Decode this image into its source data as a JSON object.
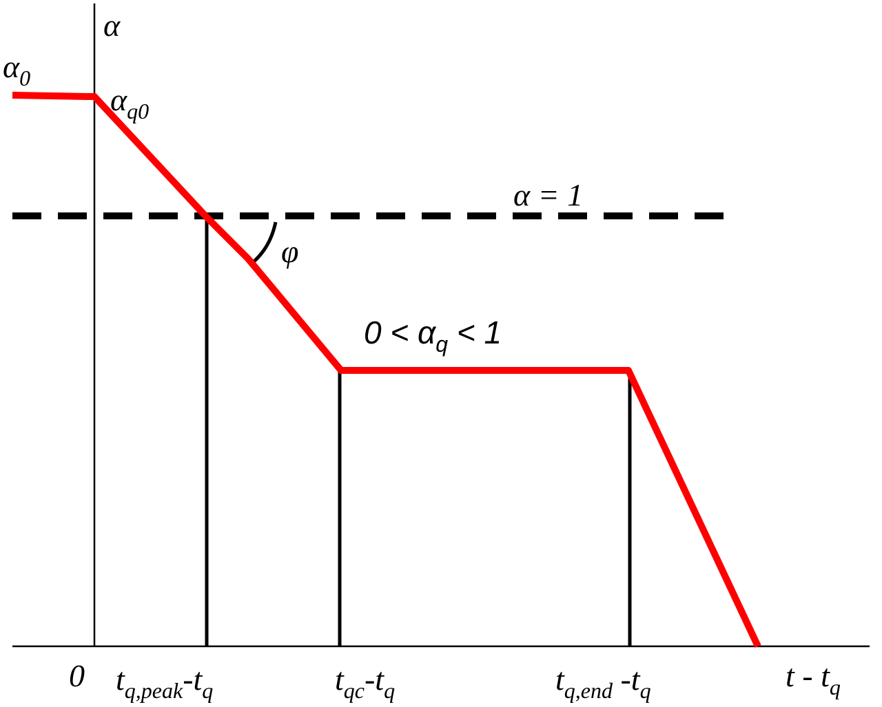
{
  "labels": {
    "y_axis": [
      {
        "text": "α"
      }
    ],
    "alpha0": [
      {
        "text": "α"
      },
      {
        "sub": "0"
      }
    ],
    "alpha_q0": [
      {
        "text": "α"
      },
      {
        "sub": "q0"
      }
    ],
    "alpha_eq_1": [
      {
        "text": "α = 1"
      }
    ],
    "phi": [
      {
        "text": "φ"
      }
    ],
    "plateau": [
      {
        "text": "0 < α"
      },
      {
        "sub": "q"
      },
      {
        "text": " < 1"
      }
    ],
    "origin": [
      {
        "text": "0"
      }
    ],
    "t_peak": [
      {
        "text": "t"
      },
      {
        "sub": "q,peak"
      },
      {
        "text": "-t"
      },
      {
        "sub": "q"
      }
    ],
    "t_qc": [
      {
        "text": "t"
      },
      {
        "sub": "qc"
      },
      {
        "text": "-t"
      },
      {
        "sub": "q"
      }
    ],
    "t_end": [
      {
        "text": "t"
      },
      {
        "sub": "q,end"
      },
      {
        "text": " -t"
      },
      {
        "sub": "q"
      }
    ],
    "x_axis": [
      {
        "text": "t - t"
      },
      {
        "sub": "q"
      }
    ]
  }
}
